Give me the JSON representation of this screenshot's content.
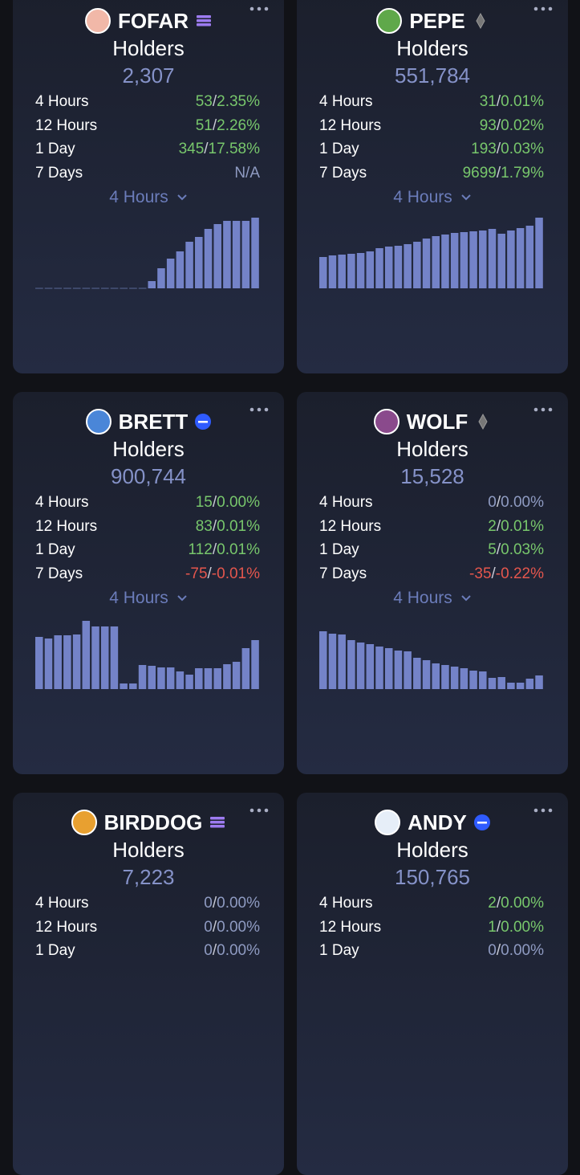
{
  "cards": [
    {
      "name": "FOFAR",
      "label": "Holders",
      "count": "2,307",
      "rows": [
        {
          "period": "4 Hours",
          "count": "53",
          "sep": "/",
          "pct": "2.35%",
          "trend": "up"
        },
        {
          "period": "12 Hours",
          "count": "51",
          "sep": "/",
          "pct": "2.26%",
          "trend": "up"
        },
        {
          "period": "1 Day",
          "count": "345",
          "sep": "/",
          "pct": "17.58%",
          "trend": "up"
        },
        {
          "period": "7 Days",
          "count": "N/A",
          "trend": "flat"
        }
      ],
      "interval": "4 Hours",
      "bars": [
        0,
        0,
        0,
        0,
        0,
        0,
        0,
        0,
        0,
        0,
        0,
        0,
        9,
        25,
        37,
        46,
        58,
        64,
        74,
        80,
        84,
        84,
        84,
        88
      ]
    },
    {
      "name": "PEPE",
      "label": "Holders",
      "count": "551,784",
      "rows": [
        {
          "period": "4 Hours",
          "count": "31",
          "sep": "/",
          "pct": "0.01%",
          "trend": "up"
        },
        {
          "period": "12 Hours",
          "count": "93",
          "sep": "/",
          "pct": "0.02%",
          "trend": "up"
        },
        {
          "period": "1 Day",
          "count": "193",
          "sep": "/",
          "pct": "0.03%",
          "trend": "up"
        },
        {
          "period": "7 Days",
          "count": "9699",
          "sep": "/",
          "pct": "1.79%",
          "trend": "up"
        }
      ],
      "interval": "4 Hours",
      "bars": [
        39,
        41,
        42,
        43,
        44,
        46,
        50,
        52,
        53,
        55,
        58,
        62,
        65,
        67,
        69,
        70,
        71,
        72,
        74,
        68,
        72,
        75,
        78,
        88
      ]
    },
    {
      "name": "BRETT",
      "label": "Holders",
      "count": "900,744",
      "rows": [
        {
          "period": "4 Hours",
          "count": "15",
          "sep": "/",
          "pct": "0.00%",
          "trend": "up"
        },
        {
          "period": "12 Hours",
          "count": "83",
          "sep": "/",
          "pct": "0.01%",
          "trend": "up"
        },
        {
          "period": "1 Day",
          "count": "112",
          "sep": "/",
          "pct": "0.01%",
          "trend": "up"
        },
        {
          "period": "7 Days",
          "count": "-75",
          "sep": "/",
          "pct": "-0.01%",
          "trend": "down"
        }
      ],
      "interval": "4 Hours",
      "bars": [
        65,
        63,
        67,
        67,
        68,
        85,
        78,
        78,
        78,
        7,
        7,
        30,
        29,
        27,
        27,
        22,
        18,
        26,
        26,
        26,
        31,
        34,
        51,
        61
      ]
    },
    {
      "name": "WOLF",
      "label": "Holders",
      "count": "15,528",
      "rows": [
        {
          "period": "4 Hours",
          "count": "0",
          "sep": "/",
          "pct": "0.00%",
          "trend": "flat"
        },
        {
          "period": "12 Hours",
          "count": "2",
          "sep": "/",
          "pct": "0.01%",
          "trend": "up"
        },
        {
          "period": "1 Day",
          "count": "5",
          "sep": "/",
          "pct": "0.03%",
          "trend": "up"
        },
        {
          "period": "7 Days",
          "count": "-35",
          "sep": "/",
          "pct": "-0.22%",
          "trend": "down"
        }
      ],
      "interval": "4 Hours",
      "bars": [
        72,
        69,
        68,
        61,
        58,
        56,
        53,
        51,
        48,
        47,
        39,
        36,
        32,
        30,
        28,
        26,
        23,
        22,
        14,
        15,
        8,
        8,
        13,
        17
      ]
    },
    {
      "name": "BIRDDOG",
      "label": "Holders",
      "count": "7,223",
      "rows": [
        {
          "period": "4 Hours",
          "count": "0",
          "sep": "/",
          "pct": "0.00%",
          "trend": "flat"
        },
        {
          "period": "12 Hours",
          "count": "0",
          "sep": "/",
          "pct": "0.00%",
          "trend": "flat"
        },
        {
          "period": "1 Day",
          "count": "0",
          "sep": "/",
          "pct": "0.00%",
          "trend": "flat"
        }
      ]
    },
    {
      "name": "ANDY",
      "label": "Holders",
      "count": "150,765",
      "rows": [
        {
          "period": "4 Hours",
          "count": "2",
          "sep": "/",
          "pct": "0.00%",
          "trend": "up"
        },
        {
          "period": "12 Hours",
          "count": "1",
          "sep": "/",
          "pct": "0.00%",
          "trend": "up"
        },
        {
          "period": "1 Day",
          "count": "0",
          "sep": "/",
          "pct": "0.00%",
          "trend": "flat"
        }
      ]
    }
  ]
}
